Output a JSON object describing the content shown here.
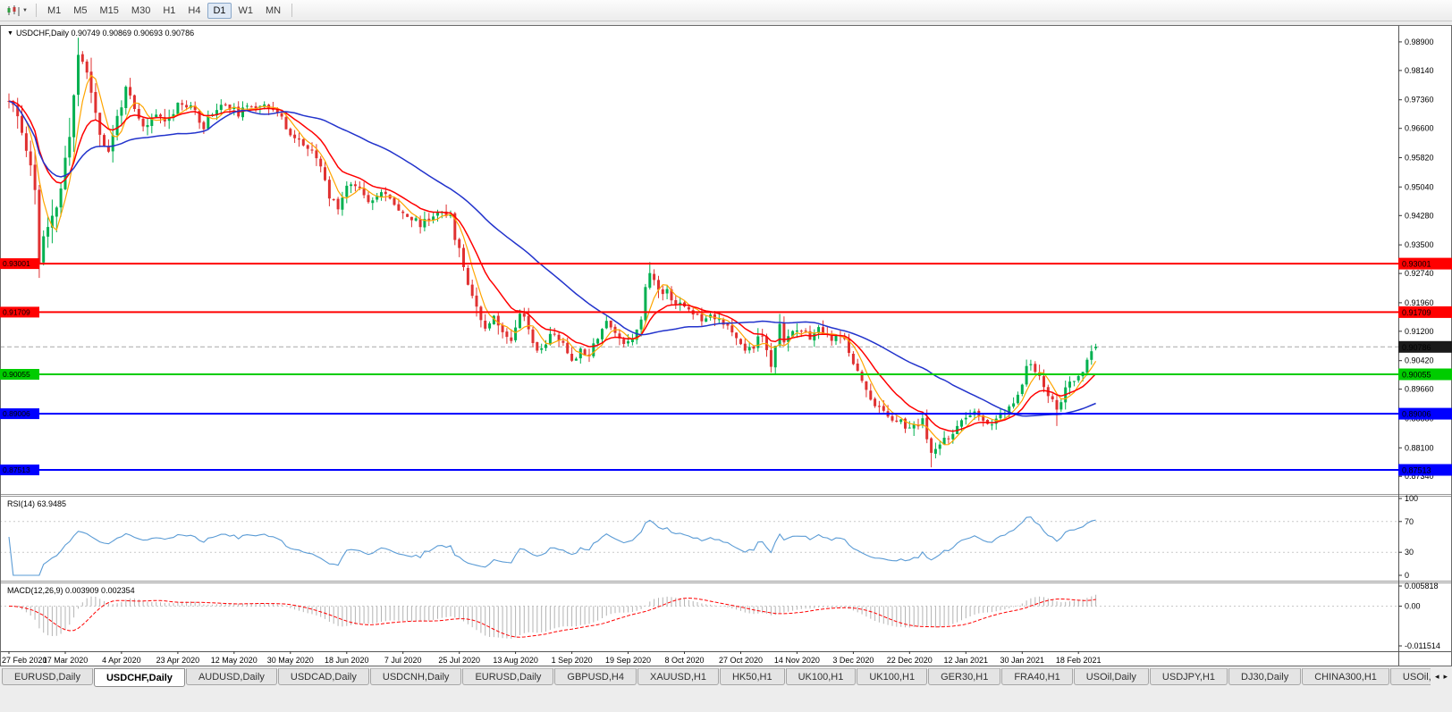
{
  "colors": {
    "up": "#00B050",
    "down": "#E03131",
    "bid_line": "#A8A8A8",
    "rsi": "#5A9BD5",
    "macd_hist": "#B4B4B4",
    "macd_signal": "#FF0000"
  },
  "icons": {
    "symbol_marker": "▼",
    "toolbar_caret": "▼",
    "tab_scroll_left": "◂",
    "tab_scroll_right": "▸"
  },
  "toolbar": {
    "timeframes": [
      "M1",
      "M5",
      "M15",
      "M30",
      "H1",
      "H4",
      "D1",
      "W1",
      "MN"
    ],
    "active_timeframe": "D1"
  },
  "chart": {
    "title": "USDCHF,Daily 0.90749 0.90869 0.90693 0.90786",
    "bid": 0.90786,
    "bid_label": "0.90786",
    "price_axis_labels": [
      "0.98900",
      "0.98140",
      "0.97360",
      "0.96600",
      "0.95820",
      "0.95040",
      "0.94280",
      "0.93500",
      "0.92740",
      "0.91960",
      "0.91200",
      "0.90420",
      "0.89660",
      "0.88880",
      "0.88100",
      "0.87340"
    ],
    "hlines": [
      {
        "value": 0.93001,
        "label": "0.93001",
        "color": "#FF0000"
      },
      {
        "value": 0.91709,
        "label": "0.91709",
        "color": "#FF0000"
      },
      {
        "value": 0.90055,
        "label": "0.90055",
        "color": "#00CC00"
      },
      {
        "value": 0.89006,
        "label": "0.89006",
        "color": "#0000FF"
      },
      {
        "value": 0.87513,
        "label": "0.87513",
        "color": "#0000FF"
      }
    ],
    "date_labels": [
      "27 Feb 2020",
      "17 Mar 2020",
      "4 Apr 2020",
      "23 Apr 2020",
      "12 May 2020",
      "30 May 2020",
      "18 Jun 2020",
      "7 Jul 2020",
      "25 Jul 2020",
      "13 Aug 2020",
      "1 Sep 2020",
      "19 Sep 2020",
      "8 Oct 2020",
      "27 Oct 2020",
      "14 Nov 2020",
      "3 Dec 2020",
      "22 Dec 2020",
      "12 Jan 2021",
      "30 Jan 2021",
      "18 Feb 2021"
    ]
  },
  "rsi": {
    "label": "RSI(14) 63.9485",
    "value": 63.9485,
    "period": 14,
    "levels": [
      70,
      30
    ],
    "axis_labels": [
      "100",
      "70",
      "30",
      "0"
    ]
  },
  "macd": {
    "label": "MACD(12,26,9) 0.003909 0.002354",
    "fast": 12,
    "slow": 26,
    "signal": 9,
    "main_value": 0.003909,
    "signal_value": 0.002354,
    "scale_max": 0.005818,
    "scale_min": -0.011514,
    "axis_labels": [
      "0.005818",
      "0.00",
      "-0.011514"
    ]
  },
  "tabbar": {
    "active_index": 1,
    "tabs": [
      "EURUSD,Daily",
      "USDCHF,Daily",
      "AUDUSD,Daily",
      "USDCAD,Daily",
      "USDCNH,Daily",
      "EURUSD,Daily",
      "GBPUSD,H4",
      "XAUUSD,H1",
      "HK50,H1",
      "UK100,H1",
      "UK100,H1",
      "GER30,H1",
      "FRA40,H1",
      "USOil,Daily",
      "USDJPY,H1",
      "DJ30,Daily",
      "CHINA300,H1",
      "USOil,"
    ]
  },
  "chart_data": {
    "type": "candlestick",
    "symbol": "USDCHF",
    "timeframe": "Daily",
    "current_ohlc": [
      0.90749,
      0.90869,
      0.90693,
      0.90786
    ],
    "visible_date_range": [
      "27 Feb 2020",
      "18 Feb 2021"
    ],
    "price_axis_range": [
      0.8687,
      0.9935
    ],
    "bars_per_label": 13,
    "horizontal_levels": [
      {
        "value": 0.93001,
        "color": "#FF0000"
      },
      {
        "value": 0.91709,
        "color": "#FF0000"
      },
      {
        "value": 0.90055,
        "color": "#00CC00"
      },
      {
        "value": 0.89006,
        "color": "#0000FF"
      },
      {
        "value": 0.87513,
        "color": "#0000FF"
      }
    ],
    "indicators": {
      "rsi_value": 63.9485,
      "macd_main": 0.003909,
      "macd_signal": 0.002354
    },
    "moving_averages": [
      {
        "type": "sma",
        "period": 5,
        "color": "#FFA500",
        "width": 1.2
      },
      {
        "type": "ema",
        "period": 13,
        "color": "#FF0000",
        "width": 1.5
      },
      {
        "type": "sma",
        "period": 40,
        "color": "#2233CC",
        "width": 1.5
      }
    ],
    "candles_spec": {
      "count": 252,
      "seed": 11,
      "close_noise": 0.0011,
      "wick_noise": 0.0022,
      "close_anchors": [
        [
          0,
          0.9732
        ],
        [
          2,
          0.9688
        ],
        [
          4,
          0.9615
        ],
        [
          6,
          0.95
        ],
        [
          7,
          0.931
        ],
        [
          8,
          0.936
        ],
        [
          10,
          0.941
        ],
        [
          12,
          0.95
        ],
        [
          14,
          0.964
        ],
        [
          16,
          0.986
        ],
        [
          17,
          0.9845
        ],
        [
          19,
          0.976
        ],
        [
          21,
          0.965
        ],
        [
          23,
          0.959
        ],
        [
          25,
          0.969
        ],
        [
          27,
          0.9765
        ],
        [
          29,
          0.9705
        ],
        [
          31,
          0.966
        ],
        [
          34,
          0.9695
        ],
        [
          37,
          0.9685
        ],
        [
          39,
          0.973
        ],
        [
          43,
          0.9705
        ],
        [
          45,
          0.9665
        ],
        [
          47,
          0.9705
        ],
        [
          50,
          0.9725
        ],
        [
          53,
          0.97
        ],
        [
          56,
          0.9718
        ],
        [
          59,
          0.9728
        ],
        [
          62,
          0.97
        ],
        [
          64,
          0.9665
        ],
        [
          66,
          0.9635
        ],
        [
          68,
          0.9618
        ],
        [
          70,
          0.9592
        ],
        [
          72,
          0.956
        ],
        [
          74,
          0.9475
        ],
        [
          76,
          0.9455
        ],
        [
          78,
          0.9505
        ],
        [
          80,
          0.9515
        ],
        [
          83,
          0.9472
        ],
        [
          86,
          0.9488
        ],
        [
          89,
          0.9462
        ],
        [
          92,
          0.9425
        ],
        [
          95,
          0.9405
        ],
        [
          98,
          0.9428
        ],
        [
          100,
          0.9448
        ],
        [
          102,
          0.942
        ],
        [
          104,
          0.9332
        ],
        [
          106,
          0.9255
        ],
        [
          108,
          0.9185
        ],
        [
          110,
          0.9132
        ],
        [
          112,
          0.9168
        ],
        [
          114,
          0.9112
        ],
        [
          116,
          0.9102
        ],
        [
          118,
          0.9178
        ],
        [
          120,
          0.9132
        ],
        [
          122,
          0.9062
        ],
        [
          124,
          0.9092
        ],
        [
          126,
          0.9118
        ],
        [
          128,
          0.9082
        ],
        [
          130,
          0.9045
        ],
        [
          132,
          0.9068
        ],
        [
          134,
          0.9062
        ],
        [
          136,
          0.9108
        ],
        [
          138,
          0.9148
        ],
        [
          140,
          0.9112
        ],
        [
          142,
          0.9092
        ],
        [
          144,
          0.9102
        ],
        [
          146,
          0.9158
        ],
        [
          147,
          0.923
        ],
        [
          148,
          0.928
        ],
        [
          149,
          0.9255
        ],
        [
          150,
          0.9225
        ],
        [
          152,
          0.923
        ],
        [
          154,
          0.9195
        ],
        [
          156,
          0.9185
        ],
        [
          158,
          0.917
        ],
        [
          160,
          0.9155
        ],
        [
          162,
          0.9165
        ],
        [
          164,
          0.9155
        ],
        [
          166,
          0.913
        ],
        [
          168,
          0.9095
        ],
        [
          170,
          0.9072
        ],
        [
          172,
          0.9082
        ],
        [
          174,
          0.9112
        ],
        [
          175,
          0.906
        ],
        [
          176,
          0.9032
        ],
        [
          177,
          0.907
        ],
        [
          178,
          0.9135
        ],
        [
          179,
          0.91
        ],
        [
          181,
          0.9125
        ],
        [
          183,
          0.9115
        ],
        [
          185,
          0.9105
        ],
        [
          187,
          0.9122
        ],
        [
          189,
          0.9105
        ],
        [
          191,
          0.9098
        ],
        [
          193,
          0.9098
        ],
        [
          195,
          0.904
        ],
        [
          197,
          0.8985
        ],
        [
          199,
          0.8945
        ],
        [
          201,
          0.8912
        ],
        [
          203,
          0.8895
        ],
        [
          205,
          0.8888
        ],
        [
          207,
          0.8868
        ],
        [
          209,
          0.8862
        ],
        [
          211,
          0.8888
        ],
        [
          212,
          0.8832
        ],
        [
          213,
          0.879
        ],
        [
          215,
          0.8815
        ],
        [
          217,
          0.8842
        ],
        [
          219,
          0.886
        ],
        [
          221,
          0.8892
        ],
        [
          223,
          0.8898
        ],
        [
          225,
          0.8885
        ],
        [
          227,
          0.8872
        ],
        [
          229,
          0.8892
        ],
        [
          231,
          0.8915
        ],
        [
          233,
          0.8945
        ],
        [
          234,
          0.8985
        ],
        [
          235,
          0.9022
        ],
        [
          236,
          0.9032
        ],
        [
          238,
          0.9002
        ],
        [
          240,
          0.8952
        ],
        [
          242,
          0.8912
        ],
        [
          244,
          0.8968
        ],
        [
          246,
          0.8988
        ],
        [
          248,
          0.9012
        ],
        [
          250,
          0.9062
        ],
        [
          251,
          0.9079
        ]
      ],
      "volatility_anchors": [
        [
          0,
          1.5
        ],
        [
          5,
          2.2
        ],
        [
          8,
          2.4
        ],
        [
          12,
          2.2
        ],
        [
          16,
          2.5
        ],
        [
          20,
          1.8
        ],
        [
          24,
          1.4
        ],
        [
          30,
          1.1
        ],
        [
          45,
          0.9
        ],
        [
          60,
          0.85
        ],
        [
          72,
          1.0
        ],
        [
          90,
          0.9
        ],
        [
          102,
          1.2
        ],
        [
          108,
          1.3
        ],
        [
          114,
          1.1
        ],
        [
          125,
          0.9
        ],
        [
          140,
          0.8
        ],
        [
          146,
          1.0
        ],
        [
          149,
          1.1
        ],
        [
          158,
          0.8
        ],
        [
          172,
          0.9
        ],
        [
          176,
          1.3
        ],
        [
          180,
          1.2
        ],
        [
          186,
          0.9
        ],
        [
          194,
          1.0
        ],
        [
          204,
          0.85
        ],
        [
          212,
          1.0
        ],
        [
          218,
          0.8
        ],
        [
          230,
          0.85
        ],
        [
          236,
          0.9
        ],
        [
          242,
          1.0
        ],
        [
          248,
          0.8
        ],
        [
          251,
          0.7
        ]
      ],
      "ohlc_overrides": {
        "251": [
          0.90749,
          0.90869,
          0.90693,
          0.90786
        ]
      },
      "wick_overrides": {
        "7": [
          null,
          0.9262
        ],
        "16": [
          0.9901,
          null
        ],
        "148": [
          0.9304,
          null
        ],
        "213": [
          null,
          0.8758
        ],
        "242": [
          null,
          0.8868
        ],
        "250": [
          0.9083,
          null
        ]
      }
    }
  }
}
